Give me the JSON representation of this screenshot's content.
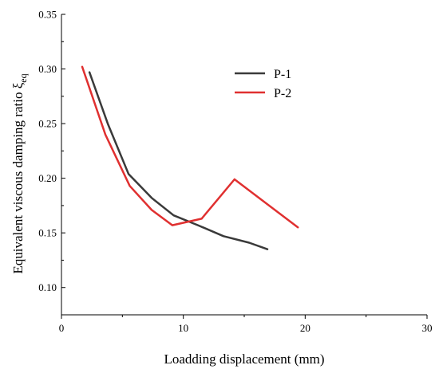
{
  "chart_data": {
    "type": "line",
    "title": "",
    "xlabel": "Loadding displacement (mm)",
    "ylabel": "Equivalent viscous damping ratio ξ",
    "ylabel_sub": "eq",
    "xlim": [
      0,
      30
    ],
    "ylim": [
      0.075,
      0.35
    ],
    "xticks": [
      "0",
      "10",
      "20",
      "30"
    ],
    "yticks": [
      "0.10",
      "0.15",
      "0.20",
      "0.25",
      "0.30",
      "0.35"
    ],
    "grid": false,
    "legend_position": "top-right",
    "series": [
      {
        "name": "P-1",
        "color": "#3a3a3a",
        "x": [
          2.3,
          3.8,
          5.5,
          7.4,
          9.2,
          11.2,
          13.3,
          15.4,
          16.9
        ],
        "y": [
          0.297,
          0.25,
          0.204,
          0.182,
          0.166,
          0.157,
          0.147,
          0.141,
          0.135
        ]
      },
      {
        "name": "P-2",
        "color": "#e03030",
        "x": [
          1.7,
          3.6,
          5.6,
          7.4,
          9.1,
          11.5,
          14.2,
          19.4
        ],
        "y": [
          0.302,
          0.24,
          0.193,
          0.171,
          0.157,
          0.163,
          0.199,
          0.155
        ]
      }
    ]
  }
}
